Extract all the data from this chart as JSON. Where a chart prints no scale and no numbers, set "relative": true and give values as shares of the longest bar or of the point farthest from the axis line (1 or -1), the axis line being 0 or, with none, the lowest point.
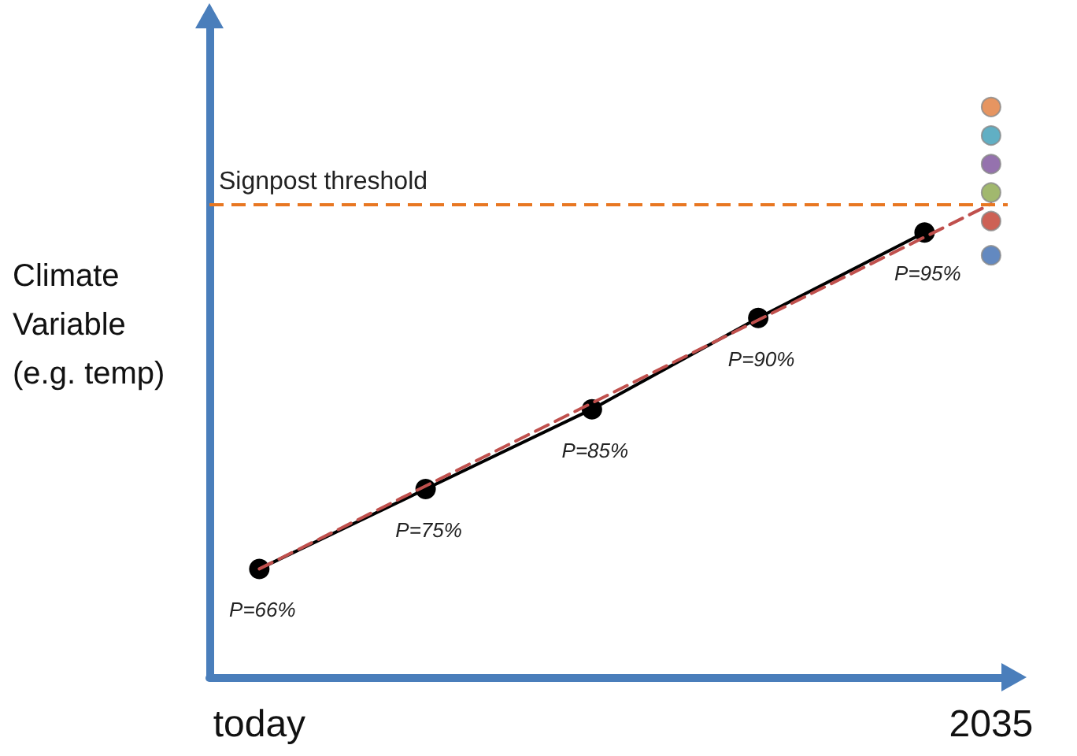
{
  "chart_data": {
    "type": "line",
    "relative": true,
    "ylabel": "Climate\nVariable\n(e.g. temp)",
    "categories": [
      null,
      "today",
      null,
      null,
      null,
      null,
      null,
      null,
      null,
      null,
      null,
      null,
      null,
      null,
      null,
      null,
      null,
      null,
      null,
      null,
      null,
      null,
      null,
      "2035"
    ],
    "tick_labels": "x",
    "series": [
      {
        "color": "#000000",
        "marker": "circle",
        "line_style": "solid",
        "values": [
          null,
          0.19,
          null,
          null,
          null,
          null,
          0.33,
          null,
          null,
          null,
          null,
          0.47,
          null,
          null,
          null,
          null,
          0.63,
          null,
          null,
          null,
          null,
          0.78,
          null,
          null
        ]
      },
      {
        "color": "#c0504d",
        "marker": "none",
        "line_style": "dashed",
        "values": [
          null,
          0.19,
          null,
          null,
          null,
          null,
          null,
          null,
          null,
          null,
          null,
          null,
          null,
          null,
          null,
          null,
          null,
          null,
          null,
          null,
          null,
          null,
          null,
          0.83
        ]
      },
      {
        "type": "scatter",
        "marker": "circle",
        "color": "#e07b39",
        "values": [
          null,
          null,
          null,
          null,
          null,
          null,
          null,
          null,
          null,
          null,
          null,
          null,
          null,
          null,
          null,
          null,
          null,
          null,
          null,
          null,
          null,
          null,
          null,
          1
        ]
      },
      {
        "type": "scatter",
        "marker": "circle",
        "color": "#3a9bb5",
        "values": [
          null,
          null,
          null,
          null,
          null,
          null,
          null,
          null,
          null,
          null,
          null,
          null,
          null,
          null,
          null,
          null,
          null,
          null,
          null,
          null,
          null,
          null,
          null,
          0.95
        ]
      },
      {
        "type": "scatter",
        "marker": "circle",
        "color": "#7a4f9a",
        "values": [
          null,
          null,
          null,
          null,
          null,
          null,
          null,
          null,
          null,
          null,
          null,
          null,
          null,
          null,
          null,
          null,
          null,
          null,
          null,
          null,
          null,
          null,
          null,
          0.9
        ]
      },
      {
        "type": "scatter",
        "marker": "circle",
        "color": "#8aa64a",
        "values": [
          null,
          null,
          null,
          null,
          null,
          null,
          null,
          null,
          null,
          null,
          null,
          null,
          null,
          null,
          null,
          null,
          null,
          null,
          null,
          null,
          null,
          null,
          null,
          0.85
        ]
      },
      {
        "type": "scatter",
        "marker": "circle",
        "color": "#c0392b",
        "values": [
          null,
          null,
          null,
          null,
          null,
          null,
          null,
          null,
          null,
          null,
          null,
          null,
          null,
          null,
          null,
          null,
          null,
          null,
          null,
          null,
          null,
          null,
          null,
          0.8
        ]
      },
      {
        "type": "scatter",
        "marker": "circle",
        "color": "#3c6bb0",
        "values": [
          null,
          null,
          null,
          null,
          null,
          null,
          null,
          null,
          null,
          null,
          null,
          null,
          null,
          null,
          null,
          null,
          null,
          null,
          null,
          null,
          null,
          null,
          null,
          0.74
        ]
      }
    ],
    "annotations": [
      "P=66%",
      "P=75%",
      "P=85%",
      "P=90%",
      "P=95%"
    ],
    "ref_lines": [
      {
        "axis": "y",
        "value": 0.83,
        "label": "Signpost threshold",
        "color": "#e87722",
        "line_style": "dashed"
      }
    ]
  }
}
